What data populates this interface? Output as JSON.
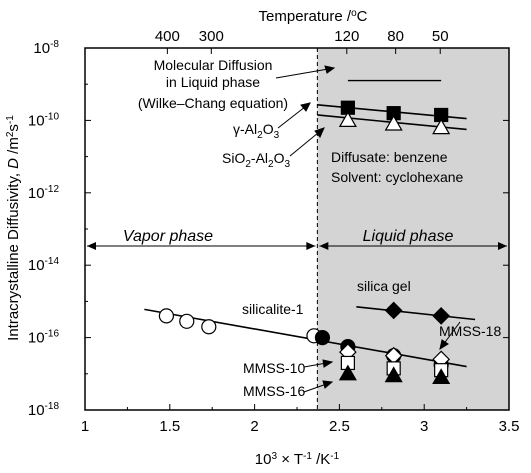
{
  "chart_data": {
    "type": "scatter",
    "x_axis": {
      "label_main": "10",
      "label_exp": "3",
      "label_rest": " × T",
      "label_exp2": "-1",
      "label_unit": " /K",
      "label_exp3": "-1",
      "range": [
        1,
        3.5
      ],
      "ticks": [
        1,
        1.5,
        2,
        2.5,
        3,
        3.5
      ],
      "tick_labels": [
        "1",
        "1.5",
        "2",
        "2.5",
        "3",
        "3.5"
      ]
    },
    "top_axis": {
      "label": "Temperature /",
      "label_sup": "o",
      "label_tail": "C",
      "ticks": [
        400,
        300,
        120,
        80,
        50
      ],
      "tick_labels": [
        "400",
        "300",
        "120",
        "80",
        "50"
      ]
    },
    "y_axis": {
      "label_prefix": "Intracrystalline Diffusivity, ",
      "label_var": "D",
      "label_unit": " /m",
      "label_sup1": "2",
      "label_s": "s",
      "label_sup2": "-1",
      "scale": "log",
      "range_log10": [
        -18,
        -8
      ],
      "ticks_log10": [
        -18,
        -16,
        -14,
        -12,
        -10,
        -8
      ],
      "tick_base": "10",
      "tick_exponents": [
        "-18",
        "-16",
        "-14",
        "-12",
        "-10",
        "-8"
      ]
    },
    "divider_x": 2.37,
    "liquid_region": [
      2.37,
      3.5
    ],
    "phase_labels": {
      "vapor": "Vapor phase",
      "liquid": "Liquid phase"
    },
    "annotations": {
      "molecular_line1": "Molecular Diffusion",
      "molecular_line2": "in Liquid phase",
      "molecular_line3": "(Wilke–Chang equation)",
      "gamma_prefix": "γ-Al",
      "gamma_sub1": "2",
      "gamma_mid": "O",
      "gamma_sub2": "3",
      "sio2_prefix": "SiO",
      "sio2_sub1": "2",
      "sio2_mid": "-Al",
      "sio2_sub2": "2",
      "sio2_mid2": "O",
      "sio2_sub3": "3",
      "diffusate": "Diffusate: benzene",
      "solvent": "Solvent: cyclohexane",
      "silica_gel": "silica gel",
      "silicalite": "silicalite-1",
      "mmss18": "MMSS-18",
      "mmss10": "MMSS-10",
      "mmss16": "MMSS-16"
    },
    "series": [
      {
        "name": "Molecular Diffusion in Liquid phase",
        "marker": "line",
        "x": [
          2.55,
          3.1
        ],
        "y_log10": [
          -8.9,
          -8.9
        ]
      },
      {
        "name": "γ-Al2O3",
        "marker": "filled-square",
        "x": [
          2.55,
          2.82,
          3.1
        ],
        "y_log10": [
          -9.65,
          -9.8,
          -9.85
        ],
        "fit_x": [
          2.37,
          3.25
        ],
        "fit_y_log10": [
          -9.57,
          -9.95
        ]
      },
      {
        "name": "SiO2-Al2O3",
        "marker": "open-triangle",
        "x": [
          2.55,
          2.82,
          3.1
        ],
        "y_log10": [
          -10.0,
          -10.1,
          -10.2
        ],
        "fit_x": [
          2.37,
          3.25
        ],
        "fit_y_log10": [
          -9.85,
          -10.25
        ]
      },
      {
        "name": "silicalite-1",
        "marker": "open-circle",
        "x": [
          1.48,
          1.6,
          1.73,
          2.35
        ],
        "y_log10": [
          -15.4,
          -15.55,
          -15.7,
          -15.95
        ]
      },
      {
        "name": "silicalite-1 (liquid)",
        "marker": "filled-circle",
        "x": [
          2.4,
          2.55,
          2.82,
          3.1
        ],
        "y_log10": [
          -16.0,
          -16.25,
          -16.5,
          -16.75
        ],
        "fit_x": [
          1.35,
          3.25
        ],
        "fit_y_log10": [
          -15.22,
          -16.8
        ]
      },
      {
        "name": "silica gel",
        "marker": "filled-diamond",
        "x": [
          2.82,
          3.1
        ],
        "y_log10": [
          -15.25,
          -15.4
        ],
        "fit_x": [
          2.6,
          3.3
        ],
        "fit_y_log10": [
          -15.15,
          -15.5
        ]
      },
      {
        "name": "MMSS-18",
        "marker": "open-diamond",
        "x": [
          2.55,
          2.82,
          3.1
        ],
        "y_log10": [
          -16.4,
          -16.5,
          -16.6
        ]
      },
      {
        "name": "MMSS-10",
        "marker": "open-square",
        "x": [
          2.55,
          2.82,
          3.1
        ],
        "y_log10": [
          -16.7,
          -16.85,
          -16.9
        ]
      },
      {
        "name": "MMSS-16",
        "marker": "filled-triangle",
        "x": [
          2.55,
          2.82,
          3.1
        ],
        "y_log10": [
          -17.0,
          -17.05,
          -17.1
        ]
      }
    ]
  }
}
